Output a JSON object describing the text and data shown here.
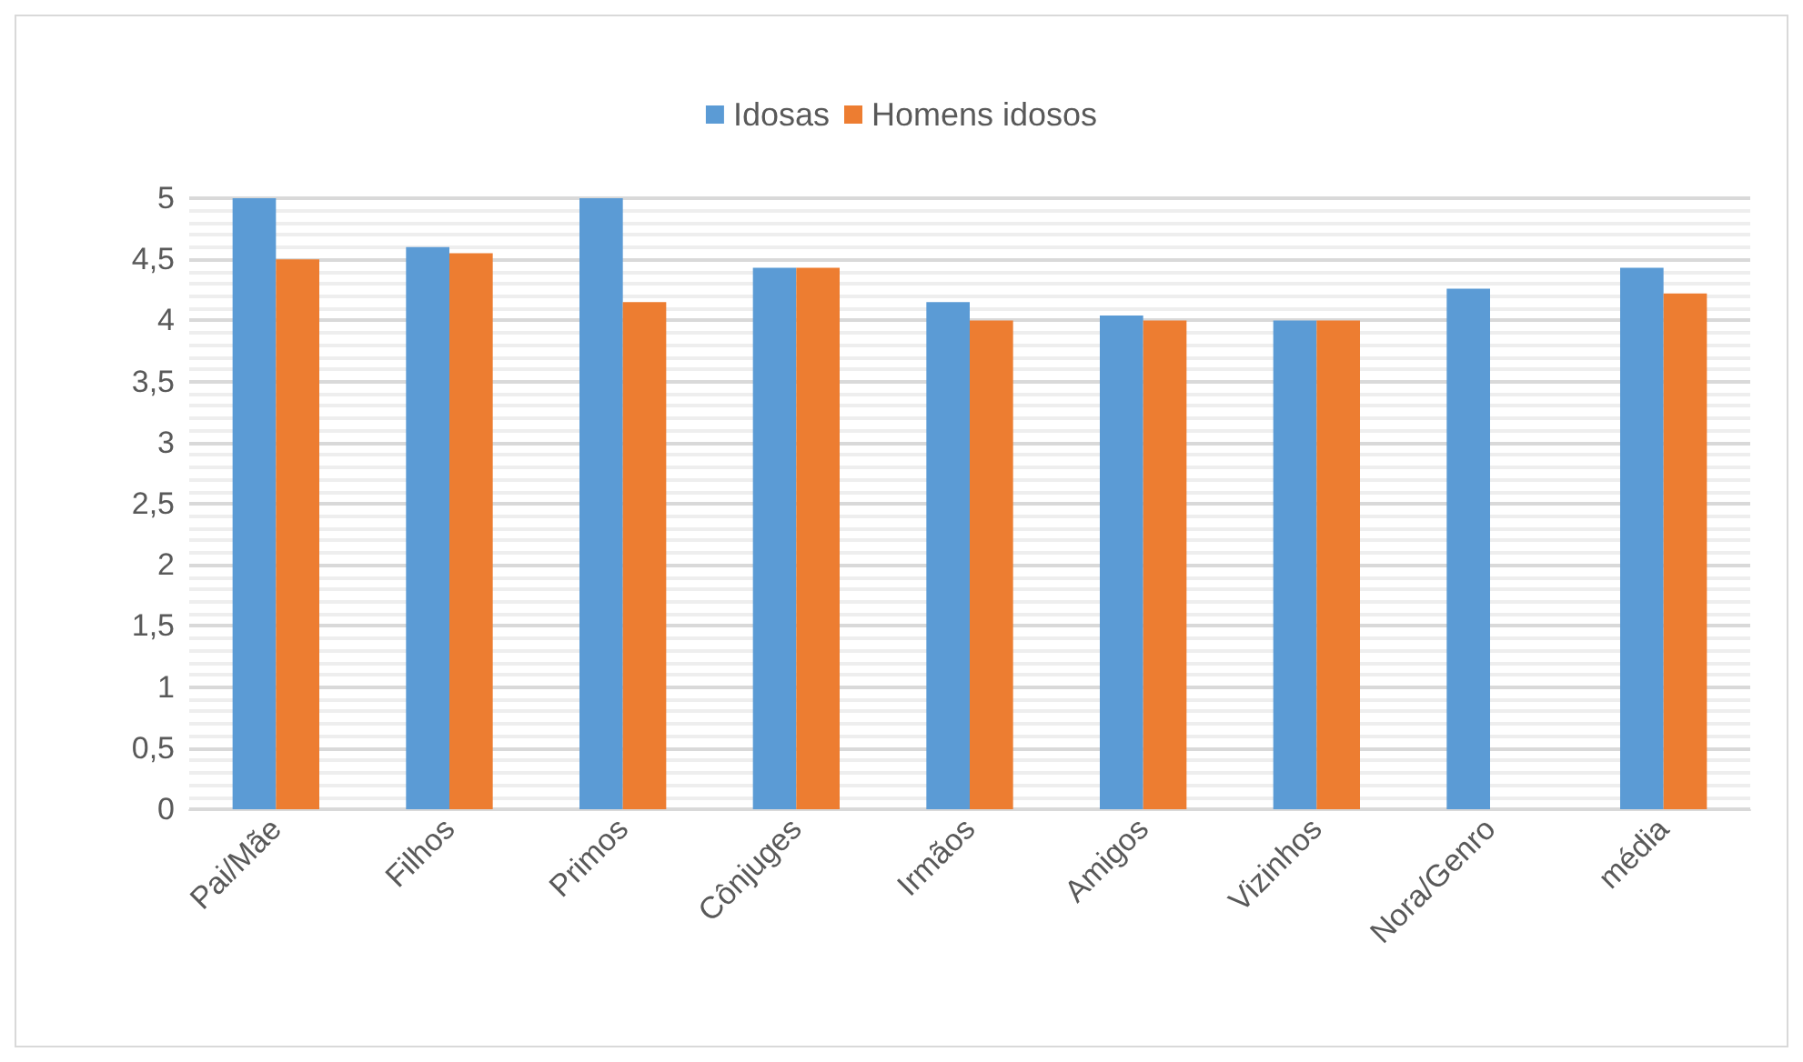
{
  "chart_data": {
    "type": "bar",
    "categories": [
      "Pai/Mãe",
      "Filhos",
      "Primos",
      "Cônjuges",
      "Irmãos",
      "Amigos",
      "Vizinhos",
      "Nora/Genro",
      "média"
    ],
    "series": [
      {
        "name": "Idosas",
        "color": "#5b9bd5",
        "values": [
          5,
          4.6,
          5,
          4.43,
          4.15,
          4.04,
          4,
          4.26,
          4.43
        ]
      },
      {
        "name": "Homens idosos",
        "color": "#ed7d31",
        "values": [
          4.5,
          4.55,
          4.15,
          4.43,
          4,
          4,
          4,
          null,
          4.22
        ]
      }
    ],
    "ylim": [
      0,
      5
    ],
    "yticks": [
      0,
      {
        "value": 0.5,
        "label": "0,5"
      },
      1,
      {
        "value": 1.5,
        "label": "1,5"
      },
      2,
      {
        "value": 2.5,
        "label": "2,5"
      },
      3,
      {
        "value": 3.5,
        "label": "3,5"
      },
      4,
      {
        "value": 4.5,
        "label": "4,5"
      },
      5
    ],
    "grid": "y",
    "legend": "top"
  }
}
